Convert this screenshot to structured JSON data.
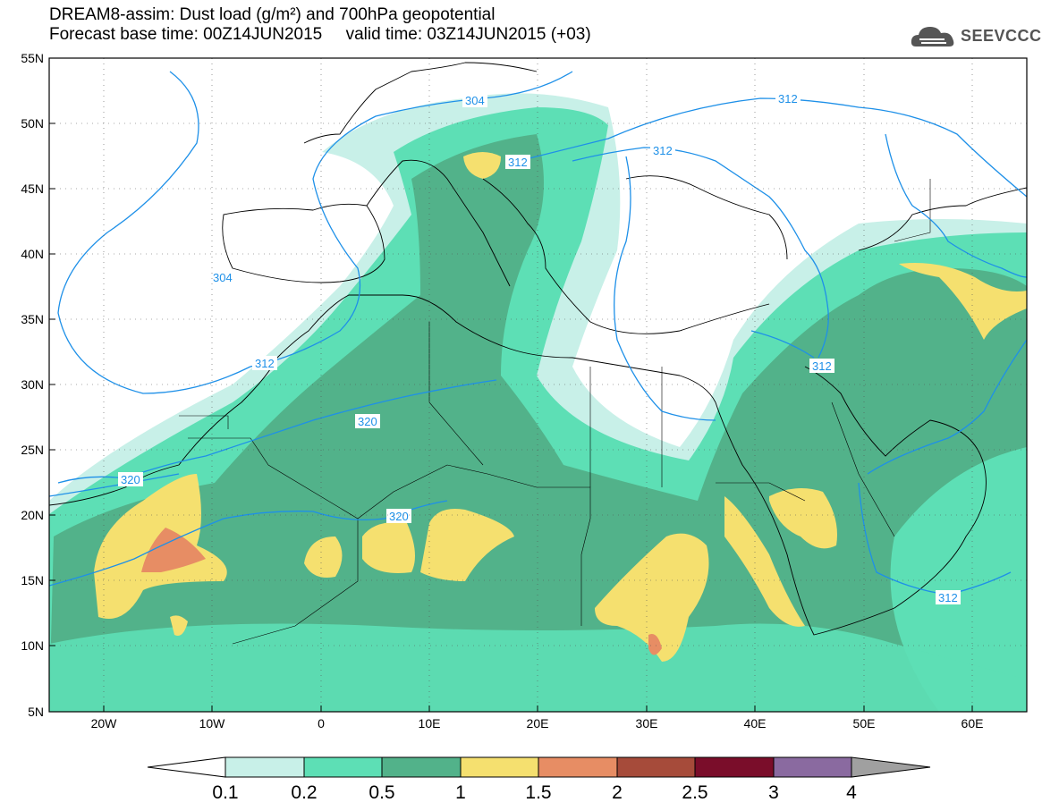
{
  "title": {
    "line1": "DREAM8-assim: Dust load (g/m²) and 700hPa geopotential",
    "line2": "Forecast base time: 00Z14JUN2015     valid time: 03Z14JUN2015 (+03)"
  },
  "logo": {
    "text": "SEEVCCC",
    "icon": "cloud-logo-icon"
  },
  "axes": {
    "lat_labels": [
      "55N",
      "50N",
      "45N",
      "40N",
      "35N",
      "30N",
      "25N",
      "20N",
      "15N",
      "10N",
      "5N"
    ],
    "lon_labels": [
      "20W",
      "10W",
      "0",
      "10E",
      "20E",
      "30E",
      "40E",
      "50E",
      "60E"
    ]
  },
  "contour_labels": [
    "304",
    "312",
    "312",
    "304",
    "312",
    "312",
    "320",
    "320",
    "320",
    "312",
    "312"
  ],
  "colorbar": {
    "labels": [
      "0.1",
      "0.2",
      "0.5",
      "1",
      "1.5",
      "2",
      "2.5",
      "3",
      "4"
    ],
    "colors": [
      "#ffffff",
      "#c8f0e8",
      "#5ddfb5",
      "#52b28a",
      "#f5e06f",
      "#e78d64",
      "#a64b3a",
      "#7a0d2a",
      "#8a6aa0",
      "#a0a0a0"
    ]
  },
  "colors": {
    "contour_line": "#1e90e8",
    "contour_label": "#1e90e8",
    "dust_very_light": "#c8f0e8",
    "dust_light": "#5ddfb5",
    "dust_medium": "#52b28a",
    "dust_yellow": "#f5e06f",
    "dust_orange": "#e78d64"
  }
}
